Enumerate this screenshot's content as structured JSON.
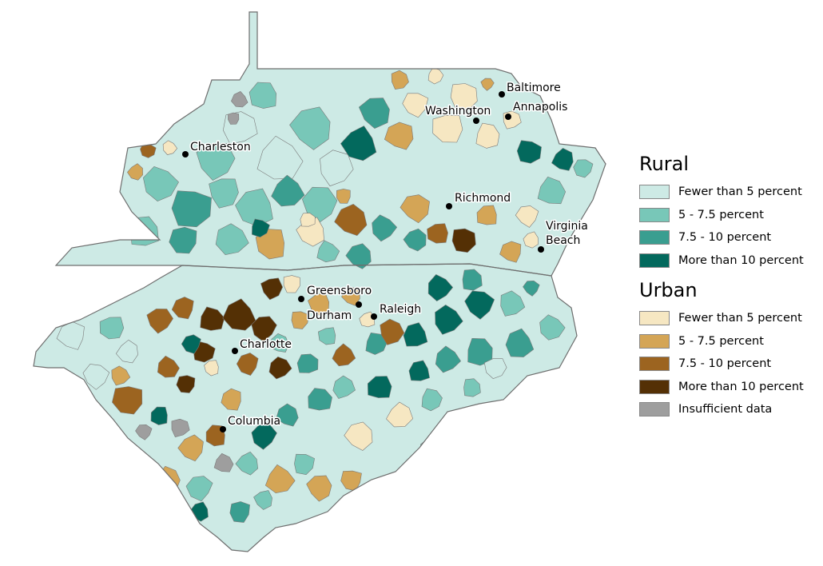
{
  "legend": {
    "rural": {
      "title": "Rural",
      "items": [
        {
          "label": "Fewer than 5 percent",
          "color": "#cdeae5"
        },
        {
          "label": "5 - 7.5 percent",
          "color": "#78c7b8"
        },
        {
          "label": "7.5 - 10 percent",
          "color": "#3a9e90"
        },
        {
          "label": "More than 10 percent",
          "color": "#03695d"
        }
      ]
    },
    "urban": {
      "title": "Urban",
      "items": [
        {
          "label": "Fewer than 5 percent",
          "color": "#f6e7c2"
        },
        {
          "label": "5 - 7.5 percent",
          "color": "#d4a556"
        },
        {
          "label": "7.5 - 10 percent",
          "color": "#9c6420"
        },
        {
          "label": "More than 10 percent",
          "color": "#543005"
        },
        {
          "label": "Insufficient data",
          "color": "#9e9e9e"
        }
      ]
    }
  },
  "cities": [
    {
      "name": "Baltimore",
      "label": "Baltimore"
    },
    {
      "name": "Washington",
      "label": "Washington"
    },
    {
      "name": "Annapolis",
      "label": "Annapolis"
    },
    {
      "name": "Charleston",
      "label": "Charleston"
    },
    {
      "name": "Richmond",
      "label": "Richmond"
    },
    {
      "name": "Virginia Beach",
      "label_lines": [
        "Virginia",
        "Beach"
      ]
    },
    {
      "name": "Greensboro",
      "label": "Greensboro"
    },
    {
      "name": "Durham",
      "label": "Durham"
    },
    {
      "name": "Raleigh",
      "label": "Raleigh"
    },
    {
      "name": "Charlotte",
      "label": "Charlotte"
    },
    {
      "name": "Columbia",
      "label": "Columbia"
    }
  ]
}
